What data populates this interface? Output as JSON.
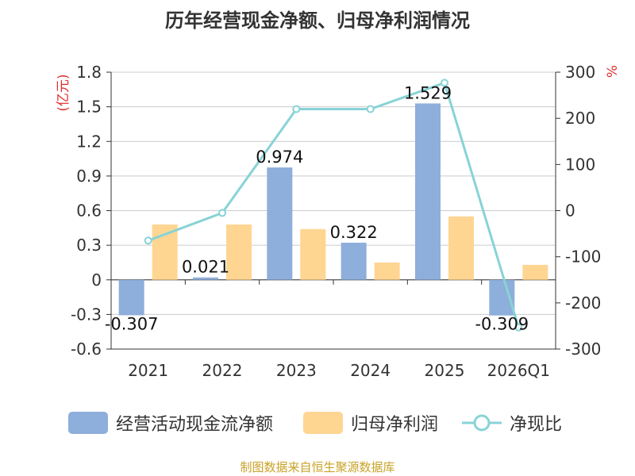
{
  "title": "历年经营现金净额、归母净利润情况",
  "source": "制图数据来自恒生聚源数据库",
  "left_axis_unit": "(亿元)",
  "right_axis_unit": "%",
  "colors": {
    "cash_flow": "#8eaedb",
    "net_profit": "#ffd592",
    "ratio": "#88d3d6",
    "unit_red": "#e03030",
    "source": "#c9a227"
  },
  "legend": {
    "cash_flow": "经营活动现金流净额",
    "net_profit": "归母净利润",
    "ratio": "净现比"
  },
  "chart_data": {
    "type": "bar",
    "categories": [
      "2021",
      "2022",
      "2023",
      "2024",
      "2025",
      "2026Q1"
    ],
    "series": [
      {
        "name": "经营活动现金流净额",
        "type": "bar",
        "axis": "left",
        "values": [
          -0.307,
          0.021,
          0.974,
          0.322,
          1.529,
          -0.309
        ],
        "data_labels": [
          "-0.307",
          "0.021",
          "0.974",
          "0.322",
          "1.529",
          "-0.309"
        ]
      },
      {
        "name": "归母净利润",
        "type": "bar",
        "axis": "left",
        "values": [
          0.48,
          0.48,
          0.44,
          0.15,
          0.55,
          0.13
        ]
      },
      {
        "name": "净现比",
        "type": "line",
        "axis": "right",
        "values": [
          -65,
          -5,
          220,
          220,
          277,
          -253
        ]
      }
    ],
    "left_axis": {
      "ylim": [
        -0.6,
        1.8
      ],
      "ticks": [
        "1.8",
        "1.5",
        "1.2",
        "0.9",
        "0.6",
        "0.3",
        "0",
        "-0.3",
        "-0.6"
      ]
    },
    "right_axis": {
      "ylim": [
        -300,
        300
      ],
      "ticks": [
        "300",
        "200",
        "100",
        "0",
        "-100",
        "-200",
        "-300"
      ]
    },
    "grid": true,
    "legend_position": "bottom"
  }
}
